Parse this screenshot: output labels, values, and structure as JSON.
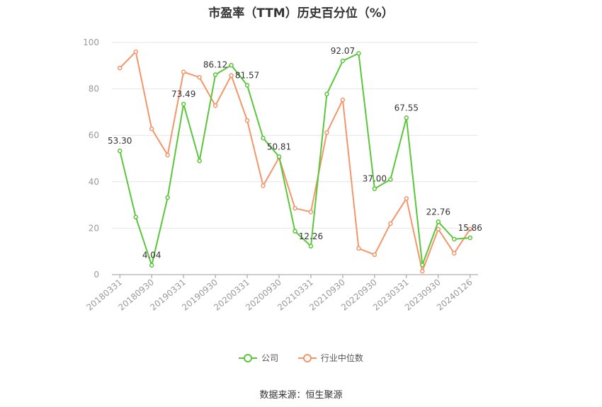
{
  "chart_data": {
    "type": "line",
    "title": "市盈率（TTM）历史百分位（%）",
    "ylim": [
      0,
      100
    ],
    "yticks": [
      0,
      20,
      40,
      60,
      80,
      100
    ],
    "grid": true,
    "legend_position": "bottom",
    "x": [
      "20180331",
      "20180630",
      "20180930",
      "20181231",
      "20190331",
      "20190630",
      "20190930",
      "20191231",
      "20200331",
      "20200630",
      "20200930",
      "20201231",
      "20210331",
      "20210630",
      "20210930",
      "20211231",
      "20220930",
      "20221231",
      "20230331",
      "20230630",
      "20230930",
      "20231231",
      "20240126"
    ],
    "xtick_labels": [
      "20180331",
      "20180930",
      "20190331",
      "20190930",
      "20200331",
      "20200930",
      "20210331",
      "20210930",
      "20220930",
      "20230331",
      "20230930",
      "20240126"
    ],
    "series": [
      {
        "name": "公司",
        "color": "#5ac63a",
        "values": [
          53.3,
          24.8,
          4.04,
          33.2,
          73.49,
          49.0,
          86.12,
          90.2,
          81.57,
          58.8,
          50.81,
          18.7,
          12.26,
          77.8,
          92.07,
          95.3,
          37.0,
          41.0,
          67.55,
          4.2,
          22.76,
          15.3,
          15.86
        ],
        "labels": {
          "0": "53.30",
          "2": "4.04",
          "4": "73.49",
          "6": "86.12",
          "8": "81.57",
          "10": "50.81",
          "12": "12.26",
          "14": "92.07",
          "16": "37.00",
          "18": "67.55",
          "20": "22.76",
          "22": "15.86"
        }
      },
      {
        "name": "行业中位数",
        "color": "#f4956a",
        "values": [
          89.0,
          96.0,
          62.8,
          51.5,
          87.3,
          85.0,
          72.8,
          85.8,
          66.4,
          38.3,
          50.4,
          28.6,
          27.0,
          61.2,
          75.3,
          11.3,
          8.6,
          22.0,
          32.8,
          1.5,
          19.6,
          9.2,
          19.6
        ]
      }
    ]
  },
  "source_text": "数据来源：恒生聚源"
}
